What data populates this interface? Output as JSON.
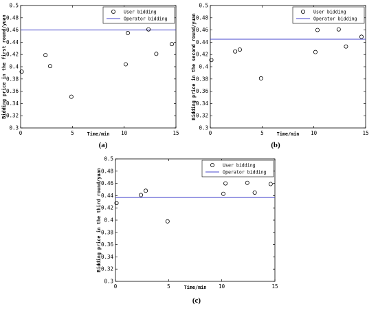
{
  "figure": {
    "captions": [
      "(a)",
      "(b)",
      "(c)"
    ]
  },
  "chart_data": [
    {
      "type": "scatter",
      "panel": "(a)",
      "xlabel": "Time/min",
      "ylabel": "Bidding price in the first round/yuan",
      "xlim": [
        0,
        15
      ],
      "ylim": [
        0.3,
        0.5
      ],
      "xticks": [
        "0",
        "5",
        "10",
        "15"
      ],
      "yticks": [
        "0.3",
        "0.32",
        "0.34",
        "0.36",
        "0.38",
        "0.4",
        "0.42",
        "0.44",
        "0.46",
        "0.48",
        "0.5"
      ],
      "legend": "top-right",
      "series": [
        {
          "name": "User bidding",
          "marker": "open-circle",
          "color": "#000000",
          "x": [
            0.1,
            2.4,
            2.85,
            4.9,
            10.15,
            10.35,
            12.35,
            13.1,
            14.6
          ],
          "y": [
            0.392,
            0.419,
            0.401,
            0.351,
            0.404,
            0.455,
            0.461,
            0.421,
            0.437
          ]
        },
        {
          "name": "Operator bidding",
          "style": "line",
          "color": "#4444cc",
          "y": 0.46
        }
      ]
    },
    {
      "type": "scatter",
      "panel": "(b)",
      "xlabel": "Time/min",
      "ylabel": "Bidding price in the second round/yuan",
      "xlim": [
        0,
        15
      ],
      "ylim": [
        0.3,
        0.5
      ],
      "xticks": [
        "0",
        "5",
        "10",
        "15"
      ],
      "yticks": [
        "0.3",
        "0.32",
        "0.34",
        "0.36",
        "0.38",
        "0.4",
        "0.42",
        "0.44",
        "0.46",
        "0.48",
        "0.5"
      ],
      "legend": "top-right",
      "series": [
        {
          "name": "User bidding",
          "marker": "open-circle",
          "color": "#000000",
          "x": [
            0.1,
            2.4,
            2.85,
            4.9,
            10.15,
            10.35,
            12.4,
            13.1,
            14.6
          ],
          "y": [
            0.411,
            0.425,
            0.428,
            0.381,
            0.424,
            0.46,
            0.461,
            0.433,
            0.449
          ]
        },
        {
          "name": "Operator bidding",
          "style": "line",
          "color": "#4444cc",
          "y": 0.445
        }
      ]
    },
    {
      "type": "scatter",
      "panel": "(c)",
      "xlabel": "Time/min",
      "ylabel": "Bidding price in the third round/yuan",
      "xlim": [
        0,
        15
      ],
      "ylim": [
        0.3,
        0.5
      ],
      "xticks": [
        "0",
        "5",
        "10",
        "15"
      ],
      "yticks": [
        "0.3",
        "0.32",
        "0.34",
        "0.36",
        "0.38",
        "0.4",
        "0.42",
        "0.44",
        "0.46",
        "0.48",
        "0.5"
      ],
      "legend": "top-right",
      "series": [
        {
          "name": "User bidding",
          "marker": "open-circle",
          "color": "#000000",
          "x": [
            0.1,
            2.4,
            2.85,
            4.9,
            10.15,
            10.35,
            12.4,
            13.1,
            14.6
          ],
          "y": [
            0.428,
            0.441,
            0.448,
            0.398,
            0.443,
            0.46,
            0.461,
            0.445,
            0.459
          ]
        },
        {
          "name": "Operator bidding",
          "style": "line",
          "color": "#4444cc",
          "y": 0.437
        }
      ]
    }
  ]
}
